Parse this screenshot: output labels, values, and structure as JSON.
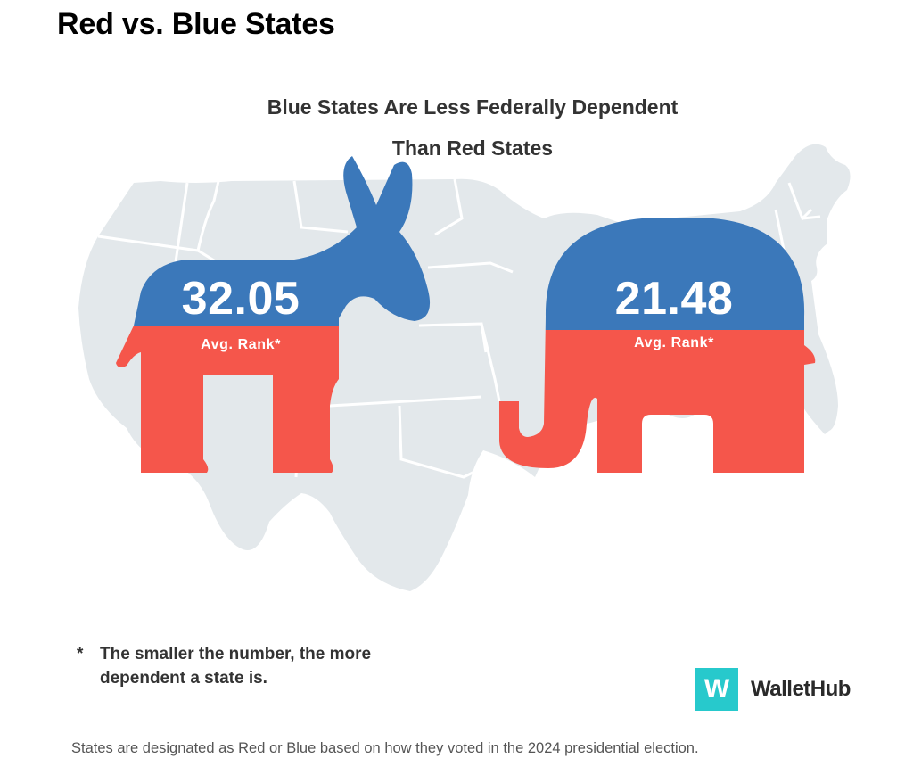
{
  "page": {
    "title": "Red vs. Blue States"
  },
  "infographic": {
    "headline_line1": "Blue States Are Less Federally Dependent",
    "headline_line2": "Than Red States",
    "blue_states": {
      "value": "32.05",
      "label": "Avg. Rank*",
      "icon": "donkey-icon"
    },
    "red_states": {
      "value": "21.48",
      "label": "Avg. Rank*",
      "icon": "elephant-icon"
    },
    "footnote_marker": "*",
    "footnote_line1": "The smaller the number, the more",
    "footnote_line2": "dependent a state is.",
    "brand_mark": "W",
    "brand_name": "WalletHub",
    "source_note": "States are designated as Red or Blue based on how they voted in the 2024 presidential election.",
    "colors": {
      "blue": "#3b78ba",
      "red": "#f5564b",
      "map": "#e3e8eb",
      "brand": "#27c9cc"
    }
  }
}
